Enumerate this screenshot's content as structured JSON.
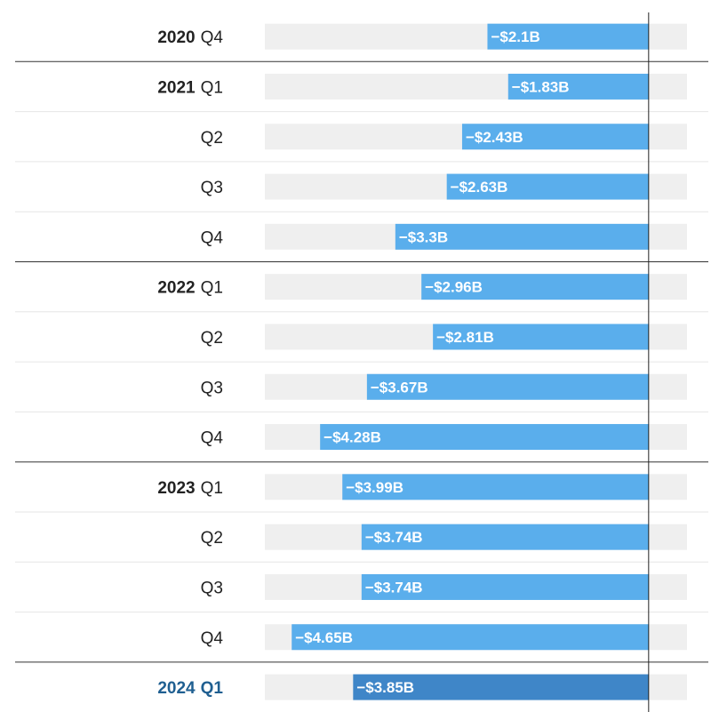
{
  "chart_data": {
    "type": "bar",
    "orientation": "horizontal",
    "categories": [
      {
        "year": "2020",
        "quarter": "Q4"
      },
      {
        "year": "2021",
        "quarter": "Q1"
      },
      {
        "year": "",
        "quarter": "Q2"
      },
      {
        "year": "",
        "quarter": "Q3"
      },
      {
        "year": "",
        "quarter": "Q4"
      },
      {
        "year": "2022",
        "quarter": "Q1"
      },
      {
        "year": "",
        "quarter": "Q2"
      },
      {
        "year": "",
        "quarter": "Q3"
      },
      {
        "year": "",
        "quarter": "Q4"
      },
      {
        "year": "2023",
        "quarter": "Q1"
      },
      {
        "year": "",
        "quarter": "Q2"
      },
      {
        "year": "",
        "quarter": "Q3"
      },
      {
        "year": "",
        "quarter": "Q4"
      },
      {
        "year": "2024",
        "quarter": "Q1"
      }
    ],
    "values": [
      -2.1,
      -1.83,
      -2.43,
      -2.63,
      -3.3,
      -2.96,
      -2.81,
      -3.67,
      -4.28,
      -3.99,
      -3.74,
      -3.74,
      -4.65,
      -3.85
    ],
    "value_labels": [
      "−$2.1B",
      "−$1.83B",
      "−$2.43B",
      "−$2.63B",
      "−$3.3B",
      "−$2.96B",
      "−$2.81B",
      "−$3.67B",
      "−$4.28B",
      "−$3.99B",
      "−$3.74B",
      "−$3.74B",
      "−$4.65B",
      "−$3.85B"
    ],
    "highlight_index": 13,
    "xlim": [
      -5.0,
      0.5
    ],
    "title": "",
    "xlabel": "",
    "ylabel": "",
    "legend": "none",
    "grid": false,
    "colors": {
      "bar": "#5aaeec",
      "bar_highlight": "#3f86c8",
      "track": "#efefef",
      "label_highlight": "#1f5f91",
      "separator": "#333333",
      "row_divider": "#e6e6e6"
    }
  }
}
